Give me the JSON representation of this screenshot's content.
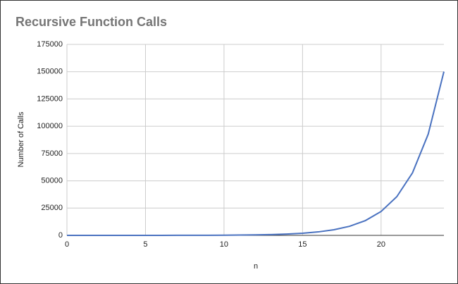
{
  "chart_data": {
    "type": "line",
    "title": "Recursive Function Calls",
    "x_label": "n",
    "y_label": "Number of Calls",
    "x": [
      0,
      1,
      2,
      3,
      4,
      5,
      6,
      7,
      8,
      9,
      10,
      11,
      12,
      13,
      14,
      15,
      16,
      17,
      18,
      19,
      20,
      21,
      22,
      23,
      24
    ],
    "series": [
      {
        "name": "Number of Calls",
        "color": "#4a72c0",
        "values": [
          1,
          1,
          3,
          5,
          9,
          15,
          25,
          41,
          67,
          109,
          177,
          287,
          465,
          753,
          1219,
          1973,
          3193,
          5167,
          8361,
          13529,
          21891,
          35421,
          57313,
          92735,
          150049
        ]
      }
    ],
    "xlim": [
      0,
      24
    ],
    "xticks": [
      0,
      5,
      10,
      15,
      20
    ],
    "ylim": [
      0,
      175000
    ],
    "yticks": [
      0,
      25000,
      50000,
      75000,
      100000,
      125000,
      150000,
      175000
    ],
    "grid": true
  }
}
